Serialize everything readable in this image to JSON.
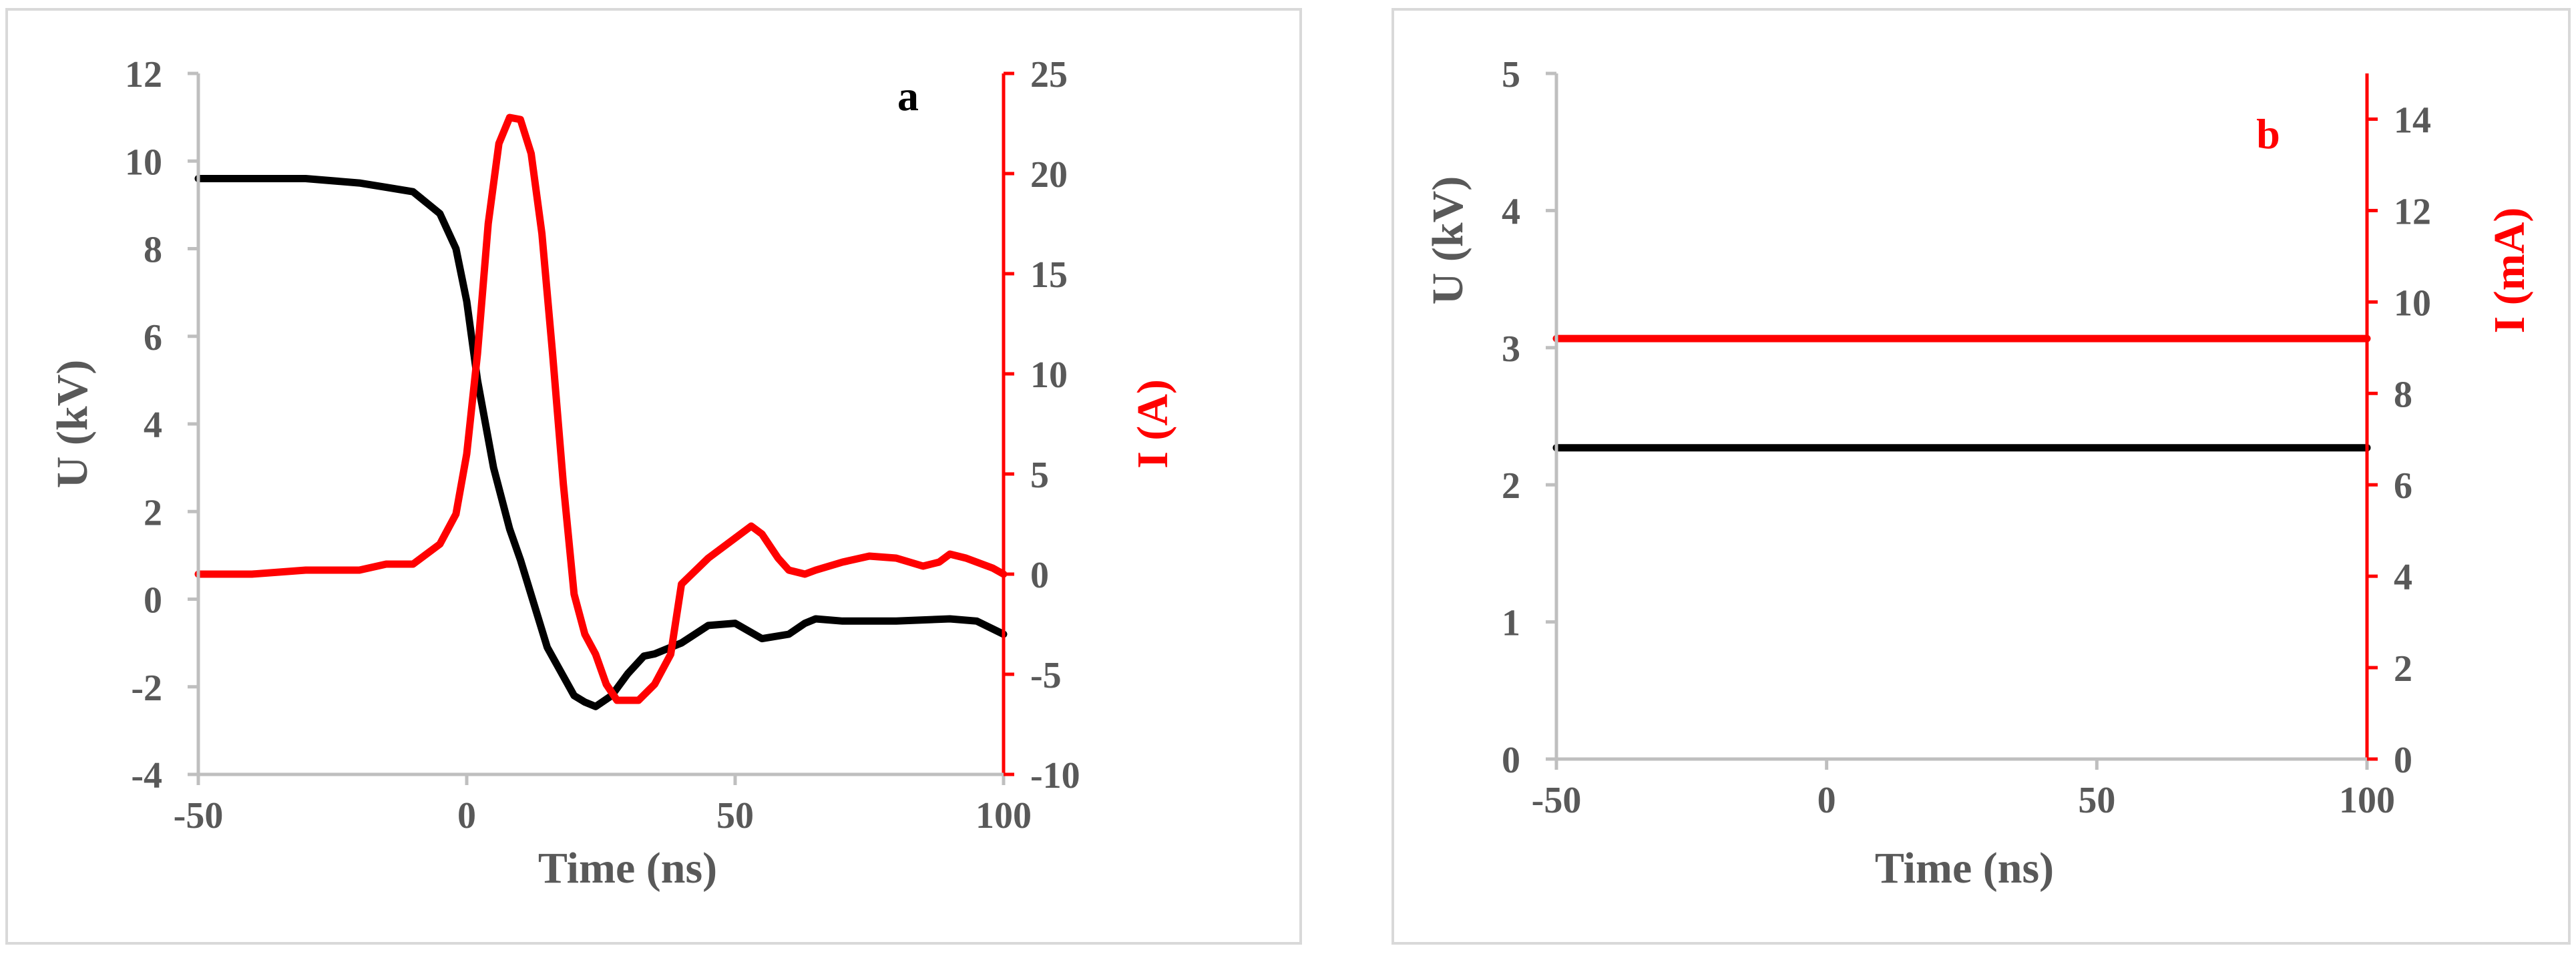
{
  "chart_data": [
    {
      "type": "line",
      "panel_label": "a",
      "xlabel": "Time (ns)",
      "ylabel": "U (kV)",
      "ylabel_right": "I (A)",
      "xlim": [
        -50,
        100
      ],
      "ylim": [
        -4,
        12
      ],
      "ylim_right": [
        -10,
        25
      ],
      "x_ticks": [
        "-50",
        "0",
        "50",
        "100"
      ],
      "y_ticks": [
        "-4",
        "-2",
        "0",
        "2",
        "4",
        "6",
        "8",
        "10",
        "12"
      ],
      "y_right_ticks": [
        "-10",
        "-5",
        "0",
        "5",
        "10",
        "15",
        "20",
        "25"
      ],
      "grid": false,
      "legend": "none",
      "colors": {
        "U": "#000000",
        "I": "#ff0000",
        "axis_left": "#bfbfbf",
        "axis_right": "#ff0000"
      },
      "series": [
        {
          "axis": "left",
          "color": "#000000",
          "x": [
            -50,
            -40,
            -30,
            -20,
            -15,
            -10,
            -5,
            -2,
            0,
            2,
            5,
            8,
            10,
            15,
            20,
            22,
            24,
            27,
            30,
            33,
            35,
            40,
            45,
            50,
            55,
            60,
            63,
            65,
            70,
            80,
            90,
            95,
            100
          ],
          "y": [
            9.6,
            9.6,
            9.6,
            9.5,
            9.4,
            9.3,
            8.8,
            8.0,
            6.8,
            5.0,
            3.0,
            1.6,
            0.9,
            -1.1,
            -2.2,
            -2.35,
            -2.45,
            -2.2,
            -1.7,
            -1.3,
            -1.25,
            -1.0,
            -0.6,
            -0.55,
            -0.9,
            -0.8,
            -0.55,
            -0.45,
            -0.5,
            -0.5,
            -0.45,
            -0.5,
            -0.8
          ]
        },
        {
          "axis": "right",
          "color": "#ff0000",
          "x": [
            -50,
            -40,
            -30,
            -20,
            -15,
            -10,
            -5,
            -2,
            0,
            2,
            4,
            6,
            8,
            10,
            12,
            14,
            16,
            18,
            20,
            22,
            24,
            26,
            28,
            30,
            32,
            35,
            38,
            40,
            45,
            50,
            53,
            55,
            58,
            60,
            63,
            65,
            70,
            75,
            80,
            85,
            88,
            90,
            93,
            95,
            98,
            100
          ],
          "y": [
            0,
            0,
            0.2,
            0.2,
            0.5,
            0.5,
            1.5,
            3.0,
            6.0,
            11.0,
            17.5,
            21.5,
            22.8,
            22.7,
            21.0,
            17.0,
            11.0,
            4.5,
            -1.0,
            -3.0,
            -4.0,
            -5.5,
            -6.3,
            -6.3,
            -6.3,
            -5.5,
            -4.0,
            -0.5,
            0.8,
            1.8,
            2.4,
            2.0,
            0.8,
            0.2,
            0.0,
            0.2,
            0.6,
            0.9,
            0.8,
            0.4,
            0.6,
            1.0,
            0.8,
            0.6,
            0.3,
            0.0
          ]
        }
      ]
    },
    {
      "type": "line",
      "panel_label": "b",
      "xlabel": "Time (ns)",
      "ylabel": "U (kV)",
      "ylabel_right": "I (mA)",
      "xlim": [
        -50,
        100
      ],
      "ylim": [
        0,
        5
      ],
      "ylim_right": [
        0,
        15
      ],
      "x_ticks": [
        "-50",
        "0",
        "50",
        "100"
      ],
      "y_ticks": [
        "0",
        "1",
        "2",
        "3",
        "4",
        "5"
      ],
      "y_right_ticks": [
        "0",
        "2",
        "4",
        "6",
        "8",
        "10",
        "12",
        "14"
      ],
      "grid": false,
      "legend": "none",
      "colors": {
        "U": "#000000",
        "I": "#ff0000",
        "axis_left": "#bfbfbf",
        "axis_right": "#ff0000"
      },
      "series": [
        {
          "axis": "left",
          "color": "#000000",
          "x": [
            -50,
            100
          ],
          "y": [
            2.27,
            2.27
          ]
        },
        {
          "axis": "right",
          "color": "#ff0000",
          "x": [
            -50,
            100
          ],
          "y": [
            9.2,
            9.2
          ]
        }
      ]
    }
  ]
}
